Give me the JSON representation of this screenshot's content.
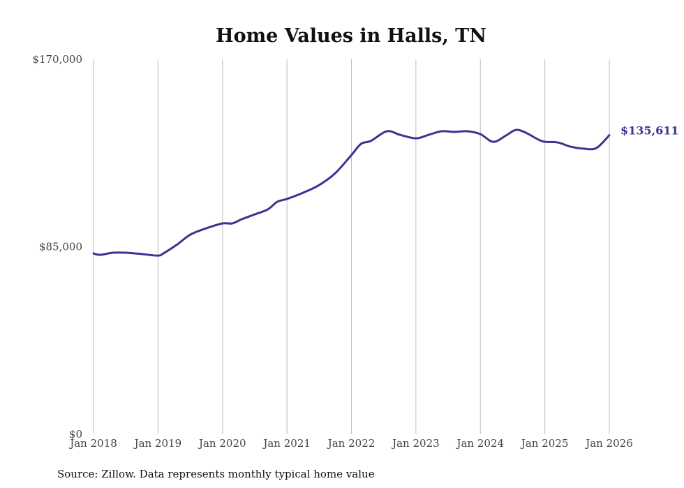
{
  "chart_data": {
    "type": "line",
    "title": "Home Values in Halls, TN",
    "xlabel": "",
    "ylabel": "",
    "ylim": [
      0,
      170000
    ],
    "xlim": [
      2018,
      2026
    ],
    "y_ticks": [
      {
        "value": 0,
        "label": "$0"
      },
      {
        "value": 85000,
        "label": "$85,000"
      },
      {
        "value": 170000,
        "label": "$170,000"
      }
    ],
    "x_ticks": [
      {
        "value": 2018,
        "label": "Jan 2018"
      },
      {
        "value": 2019,
        "label": "Jan 2019"
      },
      {
        "value": 2020,
        "label": "Jan 2020"
      },
      {
        "value": 2021,
        "label": "Jan 2021"
      },
      {
        "value": 2022,
        "label": "Jan 2022"
      },
      {
        "value": 2023,
        "label": "Jan 2023"
      },
      {
        "value": 2024,
        "label": "Jan 2024"
      },
      {
        "value": 2025,
        "label": "Jan 2025"
      },
      {
        "value": 2026,
        "label": "Jan 2026"
      }
    ],
    "grid": "vertical",
    "series": [
      {
        "name": "Typical home value",
        "color": "#3b3394",
        "x": [
          2018.0,
          2018.1,
          2018.3,
          2018.5,
          2018.75,
          2019.0,
          2019.1,
          2019.3,
          2019.5,
          2019.75,
          2020.0,
          2020.15,
          2020.3,
          2020.5,
          2020.7,
          2020.85,
          2021.0,
          2021.25,
          2021.5,
          2021.75,
          2022.0,
          2022.15,
          2022.3,
          2022.55,
          2022.75,
          2023.0,
          2023.2,
          2023.4,
          2023.6,
          2023.8,
          2024.0,
          2024.2,
          2024.4,
          2024.55,
          2024.7,
          2024.9,
          2025.0,
          2025.2,
          2025.4,
          2025.6,
          2025.8,
          2026.0
        ],
        "values": [
          82000,
          81350,
          82300,
          82300,
          81700,
          81000,
          82300,
          86100,
          90500,
          93400,
          95600,
          95600,
          97500,
          99700,
          101900,
          105400,
          106700,
          109500,
          113000,
          118400,
          126600,
          131700,
          133000,
          137400,
          135800,
          134200,
          135800,
          137400,
          137100,
          137400,
          136100,
          132600,
          135500,
          138000,
          136800,
          133600,
          132600,
          132300,
          130400,
          129500,
          129800,
          135611
        ]
      }
    ],
    "end_label": "$135,611",
    "source": "Source: Zillow. Data represents monthly typical home value"
  }
}
